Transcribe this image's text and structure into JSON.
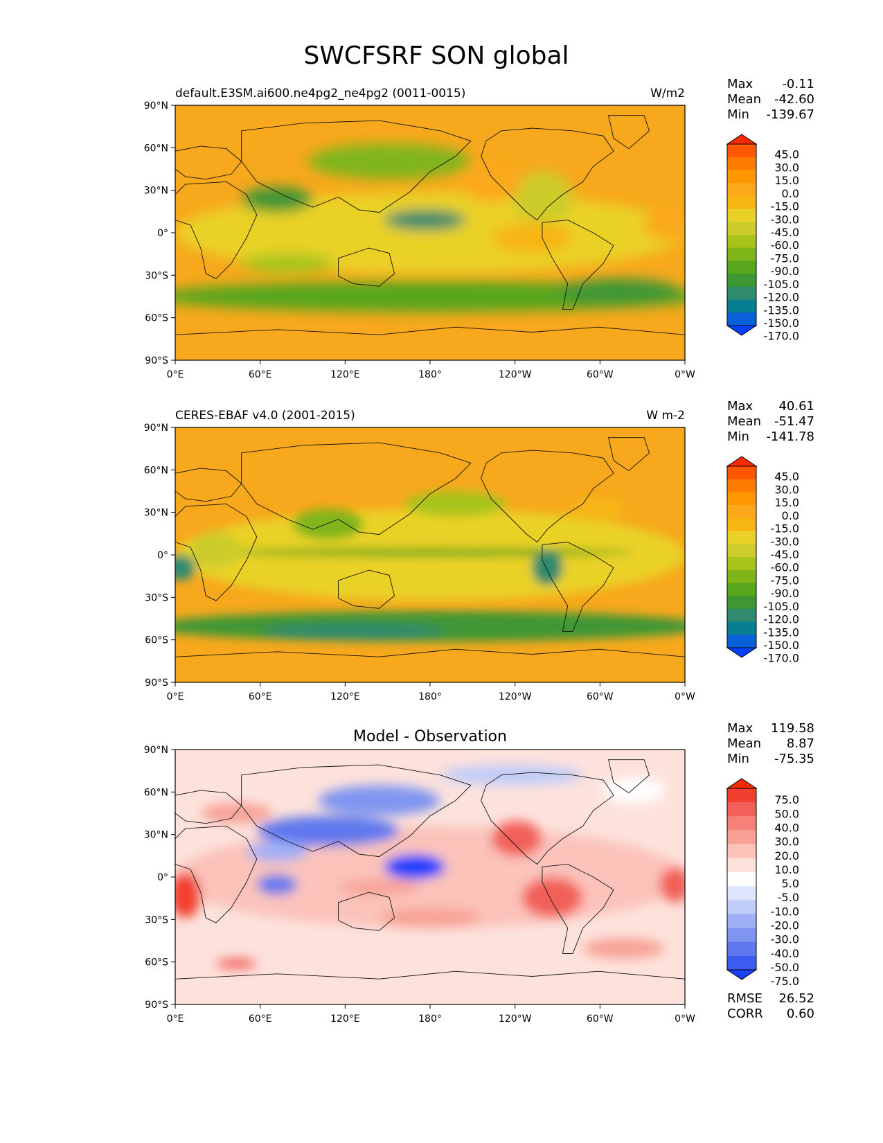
{
  "page": {
    "title": "SWCFSRF SON global"
  },
  "chart_data": [
    {
      "type": "heatmap",
      "subtitle_left": "default.E3SM.ai600.ne4pg2_ne4pg2 (0011-0015)",
      "subtitle_center": "",
      "units": "W/m2",
      "xticks": [
        "0°E",
        "60°E",
        "120°E",
        "180°",
        "120°W",
        "60°W",
        "0°W"
      ],
      "yticks": [
        "90°N",
        "60°N",
        "30°N",
        "0°",
        "30°S",
        "60°S",
        "90°S"
      ],
      "stats": [
        {
          "label": "Max",
          "value": "-0.11"
        },
        {
          "label": "Mean",
          "value": "-42.60"
        },
        {
          "label": "Min",
          "value": "-139.67"
        }
      ],
      "extra_stats": [],
      "colorbar": {
        "labels": [
          "45.0",
          "30.0",
          "15.0",
          "0.0",
          "-15.0",
          "-30.0",
          "-45.0",
          "-60.0",
          "-75.0",
          "-90.0",
          "-105.0",
          "-120.0",
          "-135.0",
          "-150.0",
          "-170.0"
        ],
        "colors": [
          "#ff2a00",
          "#ff5600",
          "#ff7b00",
          "#ff9800",
          "#fba91a",
          "#f7b512",
          "#ead127",
          "#cccc2b",
          "#a8c41a",
          "#80b51a",
          "#57a61b",
          "#3f9634",
          "#2f8a6e",
          "#087f91",
          "#0a60d8",
          "#0040ff"
        ]
      }
    },
    {
      "type": "heatmap",
      "subtitle_left": "CERES-EBAF v4.0 (2001-2015)",
      "subtitle_center": "",
      "units": "W m-2",
      "xticks": [
        "0°E",
        "60°E",
        "120°E",
        "180°",
        "120°W",
        "60°W",
        "0°W"
      ],
      "yticks": [
        "90°N",
        "60°N",
        "30°N",
        "0°",
        "30°S",
        "60°S",
        "90°S"
      ],
      "stats": [
        {
          "label": "Max",
          "value": "40.61"
        },
        {
          "label": "Mean",
          "value": "-51.47"
        },
        {
          "label": "Min",
          "value": "-141.78"
        }
      ],
      "extra_stats": [],
      "colorbar": {
        "labels": [
          "45.0",
          "30.0",
          "15.0",
          "0.0",
          "-15.0",
          "-30.0",
          "-45.0",
          "-60.0",
          "-75.0",
          "-90.0",
          "-105.0",
          "-120.0",
          "-135.0",
          "-150.0",
          "-170.0"
        ],
        "colors": [
          "#ff2a00",
          "#ff5600",
          "#ff7b00",
          "#ff9800",
          "#fba91a",
          "#f7b512",
          "#ead127",
          "#cccc2b",
          "#a8c41a",
          "#80b51a",
          "#57a61b",
          "#3f9634",
          "#2f8a6e",
          "#087f91",
          "#0a60d8",
          "#0040ff"
        ]
      }
    },
    {
      "type": "heatmap",
      "subtitle_left": "",
      "subtitle_center": "Model - Observation",
      "units": "",
      "xticks": [
        "0°E",
        "60°E",
        "120°E",
        "180°",
        "120°W",
        "60°W",
        "0°W"
      ],
      "yticks": [
        "90°N",
        "60°N",
        "30°N",
        "0°",
        "30°S",
        "60°S",
        "90°S"
      ],
      "stats": [
        {
          "label": "Max",
          "value": "119.58"
        },
        {
          "label": "Mean",
          "value": "8.87"
        },
        {
          "label": "Min",
          "value": "-75.35"
        }
      ],
      "extra_stats": [
        {
          "label": "RMSE",
          "value": "26.52"
        },
        {
          "label": "CORR",
          "value": "0.60"
        }
      ],
      "colorbar": {
        "labels": [
          "75.0",
          "50.0",
          "40.0",
          "30.0",
          "20.0",
          "10.0",
          "5.0",
          "-5.0",
          "-10.0",
          "-20.0",
          "-30.0",
          "-40.0",
          "-50.0",
          "-75.0"
        ],
        "colors": [
          "#ff2a00",
          "#f23f2f",
          "#f2605a",
          "#f58278",
          "#f8a296",
          "#fbc3ba",
          "#fde2dc",
          "#ffffff",
          "#dfe5fc",
          "#c1ccf8",
          "#a0b0f5",
          "#8095f1",
          "#5f78ed",
          "#3d5cf0",
          "#1a3fff"
        ]
      }
    }
  ]
}
